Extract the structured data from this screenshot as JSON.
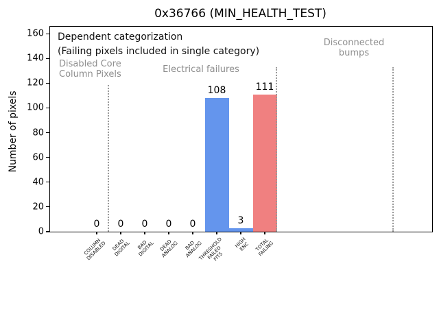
{
  "window": {
    "background": "#ffffff"
  },
  "chart_data": {
    "type": "bar",
    "title": "0x36766 (MIN_HEALTH_TEST)",
    "xlabel": "",
    "ylabel": "Number of pixels",
    "ylim": [
      0,
      165
    ],
    "yticks": [
      0,
      20,
      40,
      60,
      80,
      100,
      120,
      140,
      160
    ],
    "grid": false,
    "legend": null,
    "categories": [
      "COLUMN\nDISABLED",
      "DEAD\nDIGITAL",
      "BAD\nDIGITAL",
      "DEAD\nANALOG",
      "BAD\nANALOG",
      "THRESHOLD\nFAILED\nFITS",
      "HIGH\nENC",
      "TOTAL\nFAILING"
    ],
    "values": [
      0,
      0,
      0,
      0,
      0,
      108,
      3,
      111
    ],
    "bar_value_labels": [
      "0",
      "0",
      "0",
      "0",
      "0",
      "108",
      "3",
      "111"
    ],
    "bar_colors": [
      "#6495ED",
      "#6495ED",
      "#6495ED",
      "#6495ED",
      "#6495ED",
      "#6495ED",
      "#6495ED",
      "#F08080"
    ],
    "colors": {
      "bar_blue": "#6495ED",
      "bar_red": "#F08080",
      "section_text_gray": "#8e8e8e",
      "separator_gray": "#999999",
      "axis_black": "#000000"
    },
    "annotations": {
      "note_lines": [
        "Dependent categorization",
        "(Failing pixels included in single category)"
      ],
      "sections": [
        {
          "id": "disabled-core",
          "label_lines": [
            "Disabled Core",
            "Column Pixels"
          ],
          "align": "left"
        },
        {
          "id": "electrical",
          "label_lines": [
            "Electrical failures"
          ],
          "align": "center"
        },
        {
          "id": "disconnected-bumps",
          "label_lines": [
            "Disconnected",
            "bumps"
          ],
          "align": "center"
        }
      ],
      "separator_style": "dotted"
    }
  }
}
